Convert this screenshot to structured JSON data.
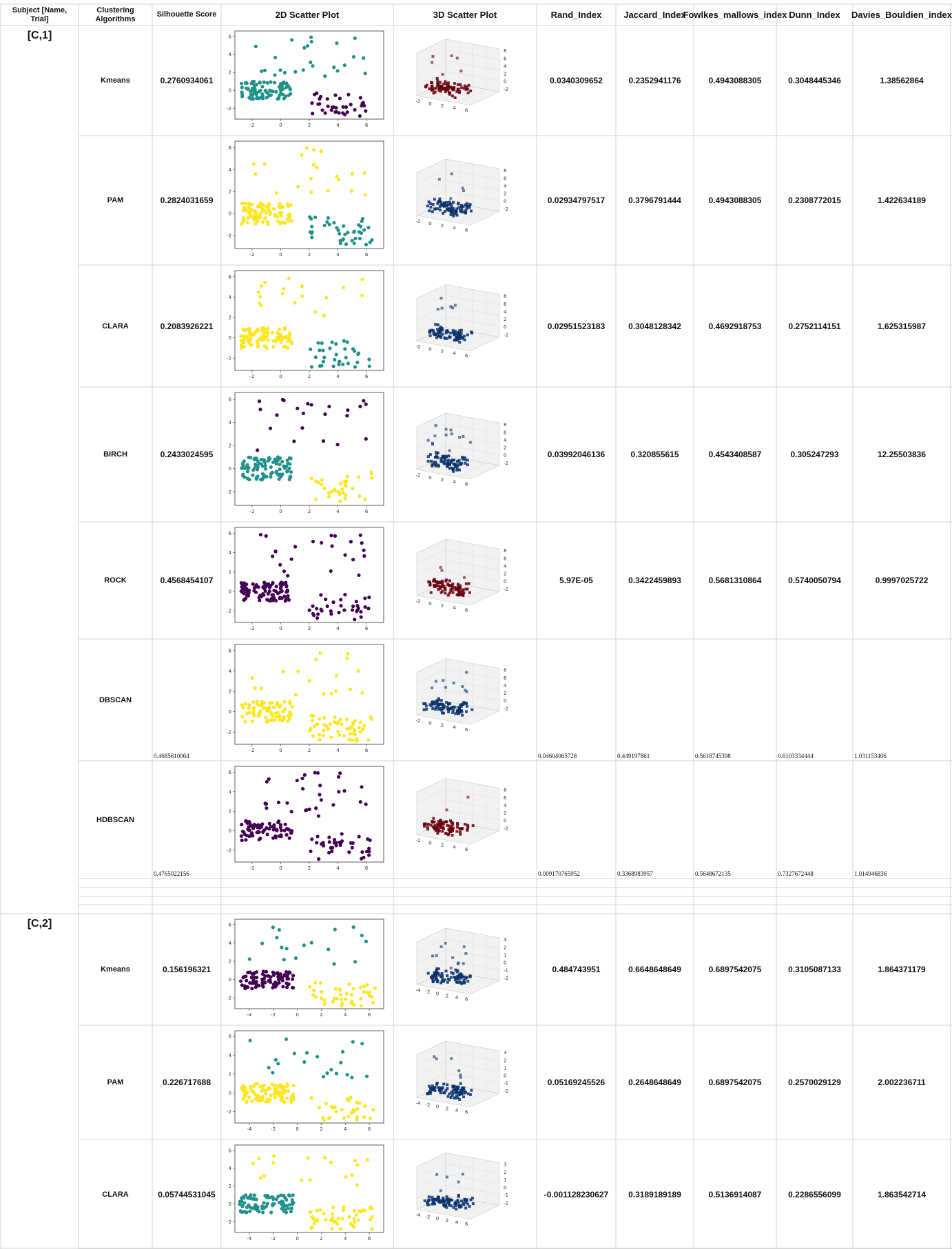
{
  "header": [
    "Subject [Name, Trial]",
    "Clustering Algorithms",
    "Silhouette Score",
    "2D Scatter Plot",
    "3D Scatter Plot",
    "Rand_Index",
    "Jaccard_Index",
    "Fowlkes_mallows_index",
    "Dunn_Index",
    "Davies_Bouldien_index"
  ],
  "groups": [
    {
      "subject": "[C,1]",
      "plot_x_ticks": [
        -2,
        0,
        2,
        4,
        6
      ],
      "plot_y_ticks": [
        -2,
        0,
        2,
        4,
        6
      ],
      "cube_x_ticks": [
        -2,
        0,
        2,
        4,
        6
      ],
      "cube_z_ticks": [
        -2,
        0,
        2,
        4,
        6,
        8
      ],
      "rows": [
        {
          "algorithm": "Kmeans",
          "values": [
            "0.2760934061",
            "0.0340309652",
            "0.2352941176",
            "0.4943088305",
            "0.3048445346",
            "1.38562864"
          ],
          "colors": [
            "#21918c",
            "#440154",
            "#21918c"
          ],
          "cube_color": "#67000d"
        },
        {
          "algorithm": "PAM",
          "values": [
            "0.2824031659",
            "0.02934797517",
            "0.3796791444",
            "0.4943088305",
            "0.2308772015",
            "1.422634189"
          ],
          "colors": [
            "#fde725",
            "#21918c",
            "#fde725"
          ],
          "cube_color": "#08306b"
        },
        {
          "algorithm": "CLARA",
          "values": [
            "0.2083926221",
            "0.02951523183",
            "0.3048128342",
            "0.4692918753",
            "0.2752114151",
            "1.625315987"
          ],
          "colors": [
            "#fde725",
            "#21918c",
            "#fde725"
          ],
          "cube_color": "#08306b"
        },
        {
          "algorithm": "BIRCH",
          "values": [
            "0.2433024595",
            "0.03992046136",
            "0.320855615",
            "0.4543408587",
            "0.305247293",
            "12.25503836"
          ],
          "colors": [
            "#21918c",
            "#fde725",
            "#440154"
          ],
          "cube_color": "#08306b"
        },
        {
          "algorithm": "ROCK",
          "values": [
            "0.4568454107",
            "5.97E-05",
            "0.3422459893",
            "0.5681310864",
            "0.5740050794",
            "0.9997025722"
          ],
          "colors": [
            "#440154",
            "#440154",
            "#440154"
          ],
          "cube_color": "#67000d"
        },
        {
          "algorithm": "DBSCAN",
          "values": [
            "0.4685610064",
            "0.04604065728",
            "0.449197861",
            "0.5618745398",
            "0.6103334444",
            "1.031153406"
          ],
          "colors": [
            "#fde725",
            "#fde725",
            "#fde725"
          ],
          "cube_color": "#08306b",
          "plain": true
        },
        {
          "algorithm": "HDBSCAN",
          "values": [
            "0.4765022156",
            "0.009170765952",
            "0.3368983957",
            "0.5648672135",
            "0.7327672448",
            "1.014946836"
          ],
          "colors": [
            "#440154",
            "#440154",
            "#440154"
          ],
          "cube_color": "#67000d",
          "plain": true
        }
      ]
    },
    {
      "subject": "[C,2]",
      "plot_x_ticks": [
        -4,
        -2,
        0,
        2,
        4,
        6
      ],
      "plot_y_ticks": [
        -2,
        0,
        2,
        4,
        6
      ],
      "cube_x_ticks": [
        -4,
        -2,
        0,
        2,
        4,
        6
      ],
      "cube_z_ticks": [
        -2,
        -1,
        0,
        1,
        2,
        3
      ],
      "rows": [
        {
          "algorithm": "Kmeans",
          "values": [
            "0.156196321",
            "0.484743951",
            "0.6648648649",
            "0.6897542075",
            "0.3105087133",
            "1.864371179"
          ],
          "colors": [
            "#440154",
            "#fde725",
            "#21918c"
          ],
          "cube_color": "#08306b"
        },
        {
          "algorithm": "PAM",
          "values": [
            "0.226717688",
            "0.05169245526",
            "0.2648648649",
            "0.6897542075",
            "0.2570029129",
            "2.002236711"
          ],
          "colors": [
            "#fde725",
            "#fde725",
            "#21918c"
          ],
          "cube_color": "#08306b"
        },
        {
          "algorithm": "CLARA",
          "values": [
            "0.05744531045",
            "-0.001128230627",
            "0.3189189189",
            "0.5136914087",
            "0.2286556099",
            "1.863542714"
          ],
          "colors": [
            "#21918c",
            "#fde725",
            "#fde725"
          ],
          "cube_color": "#08306b"
        }
      ]
    }
  ]
}
